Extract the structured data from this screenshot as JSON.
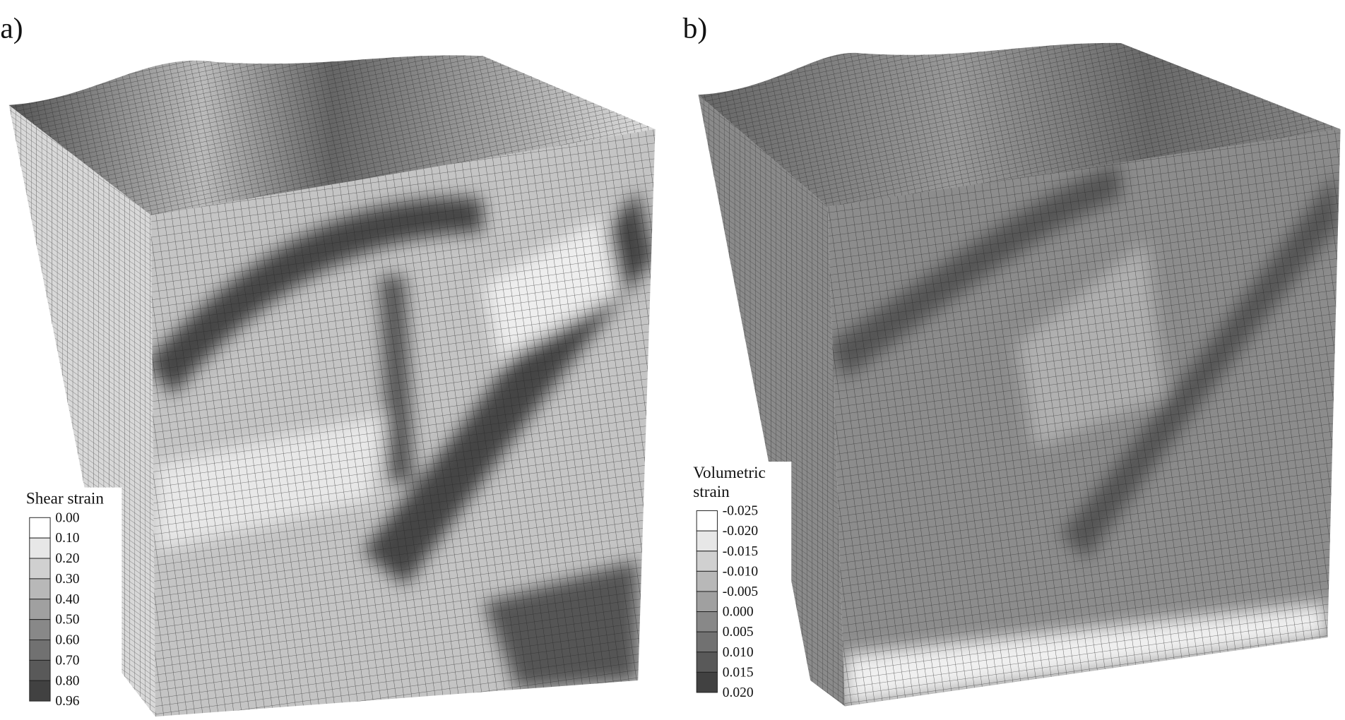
{
  "panels": [
    {
      "label": "a)",
      "legend": {
        "title": [
          "Shear strain"
        ],
        "levels": [
          "0.00",
          "0.10",
          "0.20",
          "0.30",
          "0.40",
          "0.50",
          "0.60",
          "0.70",
          "0.80",
          "0.96"
        ]
      }
    },
    {
      "label": "b)",
      "legend": {
        "title": [
          "Volumetric",
          "strain"
        ],
        "levels": [
          "-0.025",
          "-0.020",
          "-0.015",
          "-0.010",
          "-0.005",
          "0.000",
          "0.005",
          "0.010",
          "0.015",
          "0.020"
        ]
      }
    }
  ]
}
